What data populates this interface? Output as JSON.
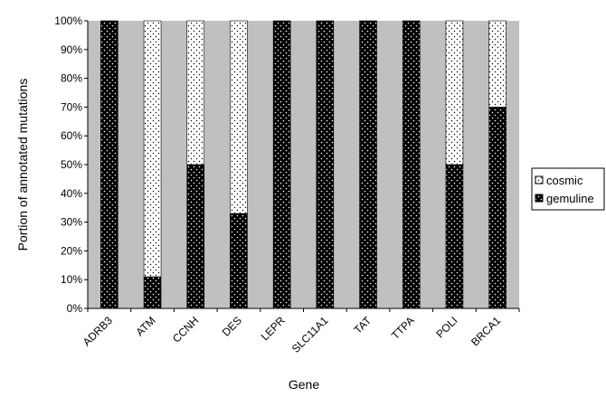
{
  "chart_data": {
    "type": "bar",
    "stacked": true,
    "categories": [
      "ADRB3",
      "ATM",
      "CCNH",
      "DES",
      "LEPR",
      "SLC11A1",
      "TAT",
      "TTPA",
      "POLI",
      "BRCA1"
    ],
    "series": [
      {
        "name": "gemuline",
        "values": [
          100,
          11,
          50,
          33,
          100,
          100,
          100,
          100,
          50,
          70
        ],
        "color": "#000000",
        "pattern": "white-dots-on-black"
      },
      {
        "name": "cosmic",
        "values": [
          0,
          89,
          50,
          67,
          0,
          0,
          0,
          0,
          50,
          30
        ],
        "color": "#ffffff",
        "pattern": "black-dots-on-white"
      }
    ],
    "title": "",
    "xlabel": "Gene",
    "ylabel": "Portion of annotated mutations",
    "ylim": [
      0,
      100
    ],
    "yticks": [
      "0%",
      "10%",
      "20%",
      "30%",
      "40%",
      "50%",
      "60%",
      "70%",
      "80%",
      "90%",
      "100%"
    ],
    "grid": false,
    "plot_background": "#c0c0c0",
    "legend": {
      "placement": "right",
      "entries": [
        "cosmic",
        "gemuline"
      ]
    }
  }
}
